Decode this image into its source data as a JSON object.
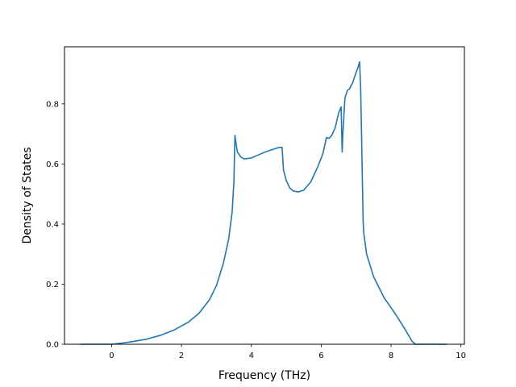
{
  "chart_data": {
    "type": "line",
    "title": "",
    "xlabel": "Frequency (THz)",
    "ylabel": "Density of States",
    "xlim": [
      -1.35,
      10.1
    ],
    "ylim": [
      0.0,
      0.99
    ],
    "xticks": [
      0,
      2,
      4,
      6,
      8,
      10
    ],
    "yticks": [
      0.0,
      0.2,
      0.4,
      0.6,
      0.8
    ],
    "xtick_labels": [
      "0",
      "2",
      "4",
      "6",
      "8",
      "10"
    ],
    "ytick_labels": [
      "0.0",
      "0.2",
      "0.4",
      "0.6",
      "0.8"
    ],
    "grid": false,
    "legend": "none",
    "series": [
      {
        "color": "#1f77b4",
        "x": [
          -0.9,
          -0.5,
          0.0,
          0.3,
          0.6,
          1.0,
          1.4,
          1.8,
          2.2,
          2.5,
          2.8,
          3.0,
          3.2,
          3.35,
          3.45,
          3.5,
          3.53,
          3.56,
          3.6,
          3.7,
          3.8,
          4.0,
          4.2,
          4.4,
          4.6,
          4.8,
          4.88,
          4.92,
          5.0,
          5.1,
          5.2,
          5.35,
          5.5,
          5.7,
          5.9,
          6.05,
          6.15,
          6.22,
          6.25,
          6.3,
          6.4,
          6.5,
          6.57,
          6.6,
          6.62,
          6.68,
          6.75,
          6.8,
          6.9,
          7.0,
          7.05,
          7.1,
          7.13,
          7.15,
          7.2,
          7.22,
          7.3,
          7.5,
          7.8,
          8.1,
          8.4,
          8.6,
          8.7,
          8.75,
          8.8,
          9.2,
          9.6
        ],
        "y": [
          0.0,
          0.0,
          0.0,
          0.004,
          0.009,
          0.017,
          0.03,
          0.048,
          0.074,
          0.103,
          0.148,
          0.195,
          0.27,
          0.35,
          0.44,
          0.54,
          0.695,
          0.67,
          0.64,
          0.623,
          0.617,
          0.62,
          0.63,
          0.64,
          0.648,
          0.655,
          0.655,
          0.58,
          0.545,
          0.52,
          0.51,
          0.507,
          0.513,
          0.54,
          0.59,
          0.635,
          0.688,
          0.685,
          0.688,
          0.695,
          0.72,
          0.77,
          0.79,
          0.64,
          0.7,
          0.82,
          0.845,
          0.848,
          0.87,
          0.905,
          0.92,
          0.94,
          0.85,
          0.73,
          0.41,
          0.37,
          0.3,
          0.225,
          0.155,
          0.105,
          0.05,
          0.01,
          0.0,
          0.0,
          0.0,
          0.0,
          0.0
        ]
      }
    ]
  }
}
